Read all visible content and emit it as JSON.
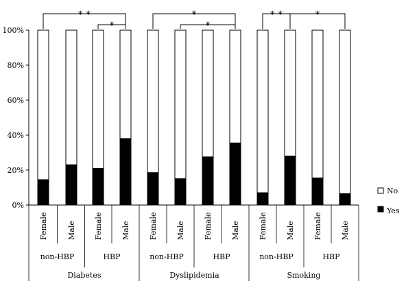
{
  "chart_data": {
    "type": "bar",
    "stacked": true,
    "y_axis": {
      "ylim": [
        0,
        100
      ],
      "ticks": [
        "0%",
        "20%",
        "40%",
        "60%",
        "80%",
        "100%"
      ]
    },
    "categories": [
      "Female",
      "Male",
      "Female",
      "Male",
      "Female",
      "Male",
      "Female",
      "Male",
      "Female",
      "Male",
      "Female",
      "Male"
    ],
    "subgroups": [
      "non-HBP",
      "HBP",
      "non-HBP",
      "HBP",
      "non-HBP",
      "HBP"
    ],
    "groups": [
      "Diabetes",
      "Dyslipidemia",
      "Smoking"
    ],
    "series": [
      {
        "name": "Yes",
        "color": "#000000",
        "values": [
          14.5,
          23,
          21,
          38,
          18.5,
          15,
          27.5,
          35.5,
          7,
          28,
          15.5,
          6.5
        ]
      },
      {
        "name": "No",
        "color": "#ffffff",
        "values": [
          85.5,
          77,
          79,
          62,
          81.5,
          85,
          72.5,
          64.5,
          93,
          72,
          84.5,
          93.5
        ]
      }
    ],
    "legend": {
      "placement": "right",
      "items": [
        "No",
        "Yes"
      ]
    },
    "significance": [
      "* *",
      "*",
      "*",
      "*",
      "* *",
      "*"
    ]
  }
}
